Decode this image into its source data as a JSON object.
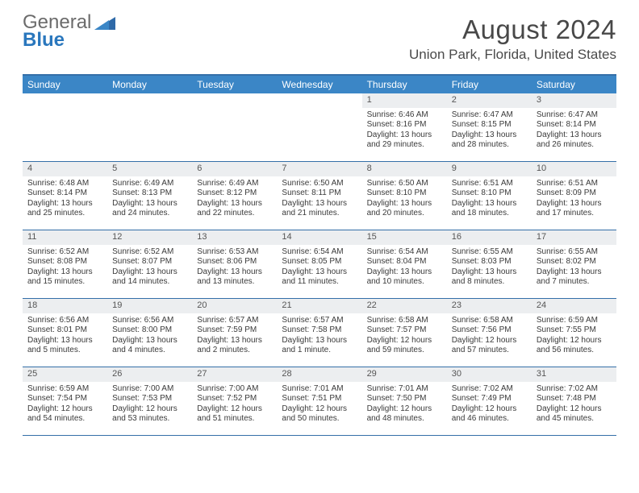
{
  "logo": {
    "line1": "General",
    "line2": "Blue"
  },
  "header": {
    "month_title": "August 2024",
    "location": "Union Park, Florida, United States"
  },
  "colors": {
    "brand_blue": "#3b86c6",
    "rule_blue": "#346fa8",
    "daynum_bg": "#eceef0",
    "text": "#333333"
  },
  "typography": {
    "title_fontsize": 33,
    "location_fontsize": 17,
    "dayhead_fontsize": 12,
    "cell_fontsize": 10
  },
  "day_headers": [
    "Sunday",
    "Monday",
    "Tuesday",
    "Wednesday",
    "Thursday",
    "Friday",
    "Saturday"
  ],
  "weeks": [
    [
      {
        "empty": true
      },
      {
        "empty": true
      },
      {
        "empty": true
      },
      {
        "empty": true
      },
      {
        "day": "1",
        "sunrise": "Sunrise: 6:46 AM",
        "sunset": "Sunset: 8:16 PM",
        "daylight1": "Daylight: 13 hours",
        "daylight2": "and 29 minutes."
      },
      {
        "day": "2",
        "sunrise": "Sunrise: 6:47 AM",
        "sunset": "Sunset: 8:15 PM",
        "daylight1": "Daylight: 13 hours",
        "daylight2": "and 28 minutes."
      },
      {
        "day": "3",
        "sunrise": "Sunrise: 6:47 AM",
        "sunset": "Sunset: 8:14 PM",
        "daylight1": "Daylight: 13 hours",
        "daylight2": "and 26 minutes."
      }
    ],
    [
      {
        "day": "4",
        "sunrise": "Sunrise: 6:48 AM",
        "sunset": "Sunset: 8:14 PM",
        "daylight1": "Daylight: 13 hours",
        "daylight2": "and 25 minutes."
      },
      {
        "day": "5",
        "sunrise": "Sunrise: 6:49 AM",
        "sunset": "Sunset: 8:13 PM",
        "daylight1": "Daylight: 13 hours",
        "daylight2": "and 24 minutes."
      },
      {
        "day": "6",
        "sunrise": "Sunrise: 6:49 AM",
        "sunset": "Sunset: 8:12 PM",
        "daylight1": "Daylight: 13 hours",
        "daylight2": "and 22 minutes."
      },
      {
        "day": "7",
        "sunrise": "Sunrise: 6:50 AM",
        "sunset": "Sunset: 8:11 PM",
        "daylight1": "Daylight: 13 hours",
        "daylight2": "and 21 minutes."
      },
      {
        "day": "8",
        "sunrise": "Sunrise: 6:50 AM",
        "sunset": "Sunset: 8:10 PM",
        "daylight1": "Daylight: 13 hours",
        "daylight2": "and 20 minutes."
      },
      {
        "day": "9",
        "sunrise": "Sunrise: 6:51 AM",
        "sunset": "Sunset: 8:10 PM",
        "daylight1": "Daylight: 13 hours",
        "daylight2": "and 18 minutes."
      },
      {
        "day": "10",
        "sunrise": "Sunrise: 6:51 AM",
        "sunset": "Sunset: 8:09 PM",
        "daylight1": "Daylight: 13 hours",
        "daylight2": "and 17 minutes."
      }
    ],
    [
      {
        "day": "11",
        "sunrise": "Sunrise: 6:52 AM",
        "sunset": "Sunset: 8:08 PM",
        "daylight1": "Daylight: 13 hours",
        "daylight2": "and 15 minutes."
      },
      {
        "day": "12",
        "sunrise": "Sunrise: 6:52 AM",
        "sunset": "Sunset: 8:07 PM",
        "daylight1": "Daylight: 13 hours",
        "daylight2": "and 14 minutes."
      },
      {
        "day": "13",
        "sunrise": "Sunrise: 6:53 AM",
        "sunset": "Sunset: 8:06 PM",
        "daylight1": "Daylight: 13 hours",
        "daylight2": "and 13 minutes."
      },
      {
        "day": "14",
        "sunrise": "Sunrise: 6:54 AM",
        "sunset": "Sunset: 8:05 PM",
        "daylight1": "Daylight: 13 hours",
        "daylight2": "and 11 minutes."
      },
      {
        "day": "15",
        "sunrise": "Sunrise: 6:54 AM",
        "sunset": "Sunset: 8:04 PM",
        "daylight1": "Daylight: 13 hours",
        "daylight2": "and 10 minutes."
      },
      {
        "day": "16",
        "sunrise": "Sunrise: 6:55 AM",
        "sunset": "Sunset: 8:03 PM",
        "daylight1": "Daylight: 13 hours",
        "daylight2": "and 8 minutes."
      },
      {
        "day": "17",
        "sunrise": "Sunrise: 6:55 AM",
        "sunset": "Sunset: 8:02 PM",
        "daylight1": "Daylight: 13 hours",
        "daylight2": "and 7 minutes."
      }
    ],
    [
      {
        "day": "18",
        "sunrise": "Sunrise: 6:56 AM",
        "sunset": "Sunset: 8:01 PM",
        "daylight1": "Daylight: 13 hours",
        "daylight2": "and 5 minutes."
      },
      {
        "day": "19",
        "sunrise": "Sunrise: 6:56 AM",
        "sunset": "Sunset: 8:00 PM",
        "daylight1": "Daylight: 13 hours",
        "daylight2": "and 4 minutes."
      },
      {
        "day": "20",
        "sunrise": "Sunrise: 6:57 AM",
        "sunset": "Sunset: 7:59 PM",
        "daylight1": "Daylight: 13 hours",
        "daylight2": "and 2 minutes."
      },
      {
        "day": "21",
        "sunrise": "Sunrise: 6:57 AM",
        "sunset": "Sunset: 7:58 PM",
        "daylight1": "Daylight: 13 hours",
        "daylight2": "and 1 minute."
      },
      {
        "day": "22",
        "sunrise": "Sunrise: 6:58 AM",
        "sunset": "Sunset: 7:57 PM",
        "daylight1": "Daylight: 12 hours",
        "daylight2": "and 59 minutes."
      },
      {
        "day": "23",
        "sunrise": "Sunrise: 6:58 AM",
        "sunset": "Sunset: 7:56 PM",
        "daylight1": "Daylight: 12 hours",
        "daylight2": "and 57 minutes."
      },
      {
        "day": "24",
        "sunrise": "Sunrise: 6:59 AM",
        "sunset": "Sunset: 7:55 PM",
        "daylight1": "Daylight: 12 hours",
        "daylight2": "and 56 minutes."
      }
    ],
    [
      {
        "day": "25",
        "sunrise": "Sunrise: 6:59 AM",
        "sunset": "Sunset: 7:54 PM",
        "daylight1": "Daylight: 12 hours",
        "daylight2": "and 54 minutes."
      },
      {
        "day": "26",
        "sunrise": "Sunrise: 7:00 AM",
        "sunset": "Sunset: 7:53 PM",
        "daylight1": "Daylight: 12 hours",
        "daylight2": "and 53 minutes."
      },
      {
        "day": "27",
        "sunrise": "Sunrise: 7:00 AM",
        "sunset": "Sunset: 7:52 PM",
        "daylight1": "Daylight: 12 hours",
        "daylight2": "and 51 minutes."
      },
      {
        "day": "28",
        "sunrise": "Sunrise: 7:01 AM",
        "sunset": "Sunset: 7:51 PM",
        "daylight1": "Daylight: 12 hours",
        "daylight2": "and 50 minutes."
      },
      {
        "day": "29",
        "sunrise": "Sunrise: 7:01 AM",
        "sunset": "Sunset: 7:50 PM",
        "daylight1": "Daylight: 12 hours",
        "daylight2": "and 48 minutes."
      },
      {
        "day": "30",
        "sunrise": "Sunrise: 7:02 AM",
        "sunset": "Sunset: 7:49 PM",
        "daylight1": "Daylight: 12 hours",
        "daylight2": "and 46 minutes."
      },
      {
        "day": "31",
        "sunrise": "Sunrise: 7:02 AM",
        "sunset": "Sunset: 7:48 PM",
        "daylight1": "Daylight: 12 hours",
        "daylight2": "and 45 minutes."
      }
    ]
  ]
}
